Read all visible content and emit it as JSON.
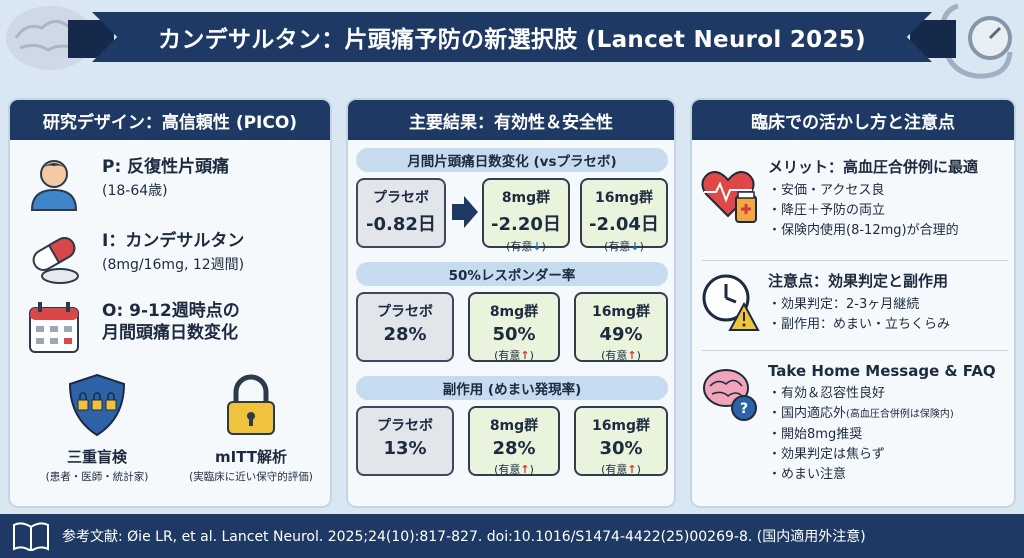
{
  "title": "カンデサルタン：片頭痛予防の新選択肢 (Lancet Neurol 2025)",
  "panels": {
    "design": {
      "header": "研究デザイン：高信頼性 (PICO)",
      "items": [
        {
          "icon": "patient-icon",
          "main": "P: 反復性片頭痛",
          "sub": "(18-64歳)"
        },
        {
          "icon": "pill-icon",
          "main": "I：カンデサルタン",
          "sub": "(8mg/16mg, 12週間)"
        },
        {
          "icon": "calendar-icon",
          "main": "O: 9-12週時点の",
          "main2": "月間頭痛日数変化"
        }
      ],
      "badges": [
        {
          "icon": "shield-lock-icon",
          "title": "三重盲検",
          "sub": "(患者・医師・統計家)"
        },
        {
          "icon": "padlock-icon",
          "title": "mITT解析",
          "sub": "(実臨床に近い保守的評価)"
        }
      ]
    },
    "results": {
      "header": "主要結果：有効性＆安全性",
      "sections": [
        {
          "label": "月間片頭痛日数変化 (vsプラセボ)",
          "placebo": {
            "name": "プラセボ",
            "value": "-0.82日"
          },
          "arms": [
            {
              "name": "8mg群",
              "value": "-2.20日",
              "sig": "(有意",
              "arrow": "↓",
              "close": ")"
            },
            {
              "name": "16mg群",
              "value": "-2.04日",
              "sig": "(有意",
              "arrow": "↓",
              "close": ")"
            }
          ]
        },
        {
          "label": "50%レスポンダー率",
          "placebo": {
            "name": "プラセボ",
            "value": "28%"
          },
          "arms": [
            {
              "name": "8mg群",
              "value": "50%",
              "sig": "(有意",
              "arrow": "↑",
              "close": ")"
            },
            {
              "name": "16mg群",
              "value": "49%",
              "sig": "(有意",
              "arrow": "↑",
              "close": ")"
            }
          ]
        },
        {
          "label": "副作用 (めまい発現率)",
          "placebo": {
            "name": "プラセボ",
            "value": "13%"
          },
          "arms": [
            {
              "name": "8mg群",
              "value": "28%",
              "sig": "(有意",
              "arrow": "↑",
              "close": ")"
            },
            {
              "name": "16mg群",
              "value": "30%",
              "sig": "(有意",
              "arrow": "↑",
              "close": ")"
            }
          ]
        }
      ]
    },
    "clinical": {
      "header": "臨床での活かし方と注意点",
      "blocks": [
        {
          "icon": "heart-medicine-icon",
          "title": "メリット：高血圧合併例に最適",
          "items": [
            "安価・アクセス良",
            "降圧＋予防の両立",
            "保険内使用(8-12mg)が合理的"
          ]
        },
        {
          "icon": "clock-warning-icon",
          "title": "注意点：効果判定と副作用",
          "items": [
            "効果判定：2-3ヶ月継続",
            "副作用：めまい・立ちくらみ"
          ]
        },
        {
          "icon": "brain-question-icon",
          "title": "Take Home Message & FAQ",
          "items": [
            "有効＆忍容性良好",
            "国内適応外",
            "開始8mg推奨",
            "効果判定は焦らず",
            "めまい注意"
          ],
          "note": "(高血圧合併例は保険内)"
        }
      ]
    }
  },
  "footer": {
    "icon": "book-icon",
    "text": "参考文献: Øie LR, et al. Lancet Neurol. 2025;24(10):817-827. doi:10.1016/S1474-4422(25)00269-8. (国内適用外注意)"
  }
}
